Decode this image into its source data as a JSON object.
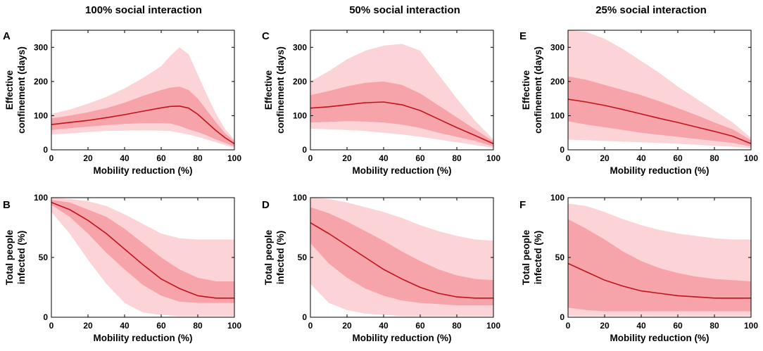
{
  "figure": {
    "column_titles": [
      "100% social interaction",
      "50% social interaction",
      "25% social interaction"
    ],
    "colors": {
      "outer_band": "#fcd3d6",
      "inner_band": "#f7a3aa",
      "median_line": "#c0141a",
      "axis": "#000000"
    }
  },
  "chart_data": [
    {
      "panel": "A",
      "type": "area",
      "title": "100% social interaction",
      "xlabel": "Mobility reduction (%)",
      "ylabel": [
        "Effective",
        "confinement (days)"
      ],
      "xlim": [
        0,
        100
      ],
      "ylim": [
        0,
        350
      ],
      "xticks": [
        0,
        20,
        40,
        60,
        80,
        100
      ],
      "yticks": [
        0,
        100,
        200,
        300
      ],
      "x": [
        0,
        10,
        20,
        30,
        40,
        50,
        60,
        65,
        70,
        75,
        80,
        85,
        90,
        95,
        100
      ],
      "median": [
        74,
        80,
        86,
        94,
        103,
        113,
        123,
        127,
        128,
        122,
        104,
        80,
        56,
        35,
        18
      ],
      "inner_low": [
        58,
        63,
        68,
        72,
        76,
        78,
        78,
        77,
        70,
        60,
        52,
        42,
        30,
        20,
        10
      ],
      "inner_high": [
        92,
        100,
        110,
        122,
        138,
        158,
        175,
        182,
        185,
        175,
        150,
        115,
        80,
        48,
        25
      ],
      "outer_low": [
        45,
        48,
        52,
        55,
        56,
        57,
        56,
        55,
        50,
        45,
        38,
        30,
        22,
        14,
        6
      ],
      "outer_high": [
        105,
        118,
        135,
        155,
        180,
        210,
        245,
        275,
        300,
        280,
        220,
        160,
        105,
        60,
        30
      ]
    },
    {
      "panel": "B",
      "type": "area",
      "title": "",
      "xlabel": "Mobility reduction (%)",
      "ylabel": [
        "Total people",
        "infected (%)"
      ],
      "xlim": [
        0,
        100
      ],
      "ylim": [
        0,
        100
      ],
      "xticks": [
        0,
        20,
        40,
        60,
        80,
        100
      ],
      "yticks": [
        0,
        50,
        100
      ],
      "x": [
        0,
        10,
        20,
        30,
        40,
        50,
        60,
        70,
        80,
        90,
        100
      ],
      "median": [
        96,
        90,
        81,
        70,
        57,
        44,
        32,
        24,
        18,
        16,
        16
      ],
      "inner_low": [
        94,
        84,
        70,
        54,
        40,
        27,
        18,
        13,
        12,
        12,
        12
      ],
      "inner_high": [
        98,
        96,
        90,
        84,
        74,
        62,
        50,
        40,
        33,
        30,
        30
      ],
      "outer_low": [
        88,
        70,
        48,
        28,
        12,
        4,
        2,
        1,
        1,
        1,
        1
      ],
      "outer_high": [
        100,
        99,
        97,
        93,
        86,
        78,
        70,
        66,
        65,
        65,
        65
      ]
    },
    {
      "panel": "C",
      "type": "area",
      "title": "50% social interaction",
      "xlabel": "Mobility reduction (%)",
      "ylabel": [
        "Effective",
        "confinement (days)"
      ],
      "xlim": [
        0,
        100
      ],
      "ylim": [
        0,
        350
      ],
      "xticks": [
        0,
        20,
        40,
        60,
        80,
        100
      ],
      "yticks": [
        0,
        100,
        200,
        300
      ],
      "x": [
        0,
        10,
        20,
        30,
        40,
        50,
        60,
        70,
        80,
        90,
        100
      ],
      "median": [
        122,
        126,
        132,
        138,
        140,
        132,
        115,
        90,
        65,
        42,
        18
      ],
      "inner_low": [
        80,
        82,
        84,
        83,
        80,
        74,
        64,
        50,
        38,
        26,
        10
      ],
      "inner_high": [
        160,
        172,
        186,
        196,
        200,
        190,
        165,
        130,
        95,
        60,
        25
      ],
      "outer_low": [
        62,
        60,
        58,
        55,
        50,
        45,
        38,
        30,
        22,
        14,
        6
      ],
      "outer_high": [
        200,
        230,
        265,
        290,
        305,
        310,
        290,
        220,
        150,
        85,
        30
      ]
    },
    {
      "panel": "D",
      "type": "area",
      "title": "",
      "xlabel": "Mobility reduction (%)",
      "ylabel": [
        "Total people",
        "infected (%)"
      ],
      "xlim": [
        0,
        100
      ],
      "ylim": [
        0,
        100
      ],
      "xticks": [
        0,
        20,
        40,
        60,
        80,
        100
      ],
      "yticks": [
        0,
        50,
        100
      ],
      "x": [
        0,
        10,
        20,
        30,
        40,
        50,
        60,
        70,
        80,
        90,
        100
      ],
      "median": [
        79,
        70,
        60,
        50,
        40,
        32,
        25,
        20,
        17,
        16,
        16
      ],
      "inner_low": [
        62,
        45,
        33,
        24,
        18,
        14,
        12,
        11,
        10,
        10,
        10
      ],
      "inner_high": [
        92,
        87,
        80,
        72,
        64,
        55,
        47,
        40,
        35,
        32,
        31
      ],
      "outer_low": [
        28,
        12,
        6,
        3,
        2,
        1,
        1,
        1,
        1,
        1,
        1
      ],
      "outer_high": [
        100,
        99,
        96,
        92,
        88,
        83,
        77,
        72,
        68,
        65,
        64
      ]
    },
    {
      "panel": "E",
      "type": "area",
      "title": "25% social interaction",
      "xlabel": "Mobility reduction (%)",
      "ylabel": [
        "Effective",
        "confinement (days)"
      ],
      "xlim": [
        0,
        100
      ],
      "ylim": [
        0,
        350
      ],
      "xticks": [
        0,
        20,
        40,
        60,
        80,
        100
      ],
      "yticks": [
        0,
        100,
        200,
        300
      ],
      "x": [
        0,
        10,
        20,
        30,
        40,
        50,
        60,
        70,
        80,
        90,
        100
      ],
      "median": [
        148,
        140,
        130,
        118,
        105,
        92,
        80,
        67,
        54,
        40,
        18
      ],
      "inner_low": [
        84,
        74,
        66,
        58,
        50,
        44,
        38,
        32,
        26,
        20,
        10
      ],
      "inner_high": [
        215,
        205,
        190,
        175,
        160,
        142,
        122,
        102,
        80,
        60,
        28
      ],
      "outer_low": [
        30,
        28,
        26,
        24,
        22,
        20,
        18,
        15,
        12,
        9,
        5
      ],
      "outer_high": [
        350,
        345,
        325,
        295,
        260,
        225,
        185,
        150,
        115,
        80,
        35
      ]
    },
    {
      "panel": "F",
      "type": "area",
      "title": "",
      "xlabel": "Mobility reduction (%)",
      "ylabel": [
        "Total people",
        "infected (%)"
      ],
      "xlim": [
        0,
        100
      ],
      "ylim": [
        0,
        100
      ],
      "xticks": [
        0,
        20,
        40,
        60,
        80,
        100
      ],
      "yticks": [
        0,
        50,
        100
      ],
      "x": [
        0,
        10,
        20,
        30,
        40,
        50,
        60,
        70,
        80,
        90,
        100
      ],
      "median": [
        45,
        38,
        31,
        26,
        22,
        20,
        18,
        17,
        16,
        16,
        16
      ],
      "inner_low": [
        8,
        6,
        5,
        5,
        5,
        5,
        5,
        5,
        5,
        5,
        5
      ],
      "inner_high": [
        82,
        74,
        65,
        55,
        47,
        41,
        37,
        34,
        32,
        31,
        30
      ],
      "outer_low": [
        1,
        1,
        1,
        1,
        1,
        1,
        1,
        1,
        1,
        1,
        1
      ],
      "outer_high": [
        95,
        93,
        88,
        82,
        77,
        73,
        70,
        68,
        66,
        65,
        65
      ]
    }
  ]
}
